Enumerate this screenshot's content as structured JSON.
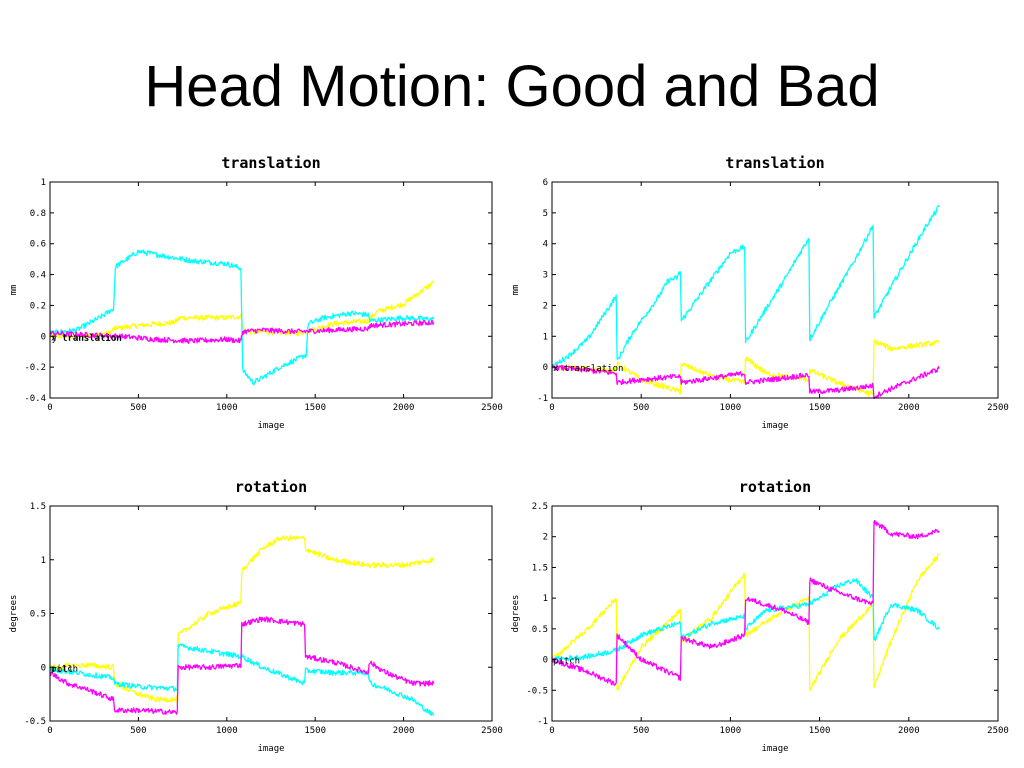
{
  "slide": {
    "title": "Head Motion: Good and Bad"
  },
  "colors": {
    "x": "#ffff00",
    "y": "#00ffff",
    "z": "#ff00ff",
    "axes": "#000000",
    "background": "#ffffff"
  },
  "chart_data": [
    {
      "type": "line",
      "title": "translation",
      "xlabel": "image",
      "ylabel": "mm",
      "xlim": [
        0,
        2500
      ],
      "ylim": [
        -0.4,
        1
      ],
      "xticks": [
        "0",
        "500",
        "1000",
        "1500",
        "2000",
        "2500"
      ],
      "yticks": [
        "-0.4",
        "-0.2",
        "0",
        "0.2",
        "0.4",
        "0.6",
        "0.8",
        "1"
      ],
      "grid": false,
      "legend_text": [
        "x translation",
        "y translation"
      ],
      "series": [
        {
          "color": "yellow",
          "x": [
            0,
            150,
            340,
            360,
            500,
            700,
            740,
            1000,
            1080,
            1100,
            1200,
            1400,
            1450,
            1600,
            1800,
            1850,
            2000,
            2170
          ],
          "y": [
            0.0,
            0.0,
            0.02,
            0.05,
            0.07,
            0.09,
            0.12,
            0.12,
            0.13,
            0.03,
            0.03,
            0.02,
            0.03,
            0.08,
            0.1,
            0.16,
            0.21,
            0.35
          ]
        },
        {
          "color": "cyan",
          "x": [
            0,
            150,
            280,
            360,
            370,
            500,
            800,
            1000,
            1080,
            1090,
            1150,
            1200,
            1300,
            1450,
            1460,
            1550,
            1700,
            1800,
            1810,
            2000,
            2170
          ],
          "y": [
            0.02,
            0.04,
            0.12,
            0.18,
            0.45,
            0.55,
            0.49,
            0.47,
            0.44,
            -0.22,
            -0.3,
            -0.27,
            -0.2,
            -0.12,
            0.08,
            0.12,
            0.15,
            0.14,
            0.1,
            0.12,
            0.11
          ]
        },
        {
          "color": "magenta",
          "x": [
            0,
            200,
            400,
            600,
            800,
            1000,
            1080,
            1090,
            1200,
            1400,
            1800,
            1810,
            2000,
            2170
          ],
          "y": [
            0.02,
            0.01,
            0.0,
            -0.02,
            -0.03,
            -0.02,
            -0.03,
            0.03,
            0.04,
            0.03,
            0.05,
            0.07,
            0.08,
            0.09
          ]
        }
      ]
    },
    {
      "type": "line",
      "title": "translation",
      "xlabel": "image",
      "ylabel": "mm",
      "xlim": [
        0,
        2500
      ],
      "ylim": [
        -1,
        6
      ],
      "xticks": [
        "0",
        "500",
        "1000",
        "1500",
        "2000",
        "2500"
      ],
      "yticks": [
        "-1",
        "0",
        "1",
        "2",
        "3",
        "4",
        "5",
        "6"
      ],
      "grid": false,
      "legend_text": [
        "x translation"
      ],
      "series": [
        {
          "color": "cyan",
          "x": [
            0,
            100,
            200,
            360,
            365,
            450,
            600,
            650,
            700,
            720,
            725,
            800,
            1000,
            1080,
            1085,
            1200,
            1300,
            1440,
            1445,
            1550,
            1700,
            1800,
            1805,
            1900,
            2100,
            2170
          ],
          "y": [
            0.0,
            0.4,
            0.9,
            2.3,
            0.2,
            1.1,
            2.3,
            2.8,
            2.9,
            3.1,
            1.5,
            2.1,
            3.7,
            3.9,
            0.8,
            1.9,
            2.8,
            4.2,
            0.9,
            2.0,
            3.5,
            4.6,
            1.6,
            2.6,
            4.6,
            5.2
          ]
        },
        {
          "color": "yellow",
          "x": [
            0,
            200,
            360,
            365,
            500,
            720,
            725,
            900,
            1080,
            1085,
            1200,
            1300,
            1440,
            1445,
            1600,
            1800,
            1805,
            1900,
            2170
          ],
          "y": [
            0.0,
            -0.05,
            -0.1,
            0.1,
            -0.4,
            -0.8,
            0.1,
            -0.3,
            -0.5,
            0.3,
            -0.2,
            -0.3,
            -0.4,
            -0.1,
            -0.5,
            -0.9,
            0.85,
            0.6,
            0.8
          ]
        },
        {
          "color": "magenta",
          "x": [
            0,
            200,
            360,
            365,
            500,
            720,
            725,
            900,
            1080,
            1085,
            1300,
            1440,
            1445,
            1600,
            1800,
            1805,
            1900,
            2170
          ],
          "y": [
            0.0,
            -0.1,
            -0.2,
            -0.5,
            -0.4,
            -0.3,
            -0.5,
            -0.35,
            -0.2,
            -0.5,
            -0.35,
            -0.25,
            -0.8,
            -0.75,
            -0.6,
            -0.95,
            -0.7,
            -0.05
          ]
        }
      ]
    },
    {
      "type": "line",
      "title": "rotation",
      "xlabel": "image",
      "ylabel": "degrees",
      "xlim": [
        0,
        2500
      ],
      "ylim": [
        -0.5,
        1.5
      ],
      "xticks": [
        "0",
        "500",
        "1000",
        "1500",
        "2000",
        "2500"
      ],
      "yticks": [
        "-0.5",
        "0",
        "0.5",
        "1",
        "1.5"
      ],
      "grid": false,
      "legend_text": [
        "pitch",
        "roll"
      ],
      "series": [
        {
          "color": "yellow",
          "x": [
            0,
            200,
            360,
            365,
            500,
            600,
            720,
            725,
            900,
            1080,
            1085,
            1200,
            1300,
            1440,
            1445,
            1600,
            1800,
            2000,
            2170
          ],
          "y": [
            0.0,
            0.02,
            0.0,
            -0.15,
            -0.25,
            -0.3,
            -0.3,
            0.3,
            0.5,
            0.6,
            0.9,
            1.1,
            1.2,
            1.2,
            1.1,
            1.0,
            0.95,
            0.95,
            1.0
          ]
        },
        {
          "color": "cyan",
          "x": [
            0,
            150,
            360,
            365,
            500,
            720,
            725,
            900,
            1080,
            1085,
            1200,
            1440,
            1445,
            1600,
            1800,
            1810,
            1900,
            2050,
            2170
          ],
          "y": [
            -0.02,
            -0.05,
            -0.1,
            -0.15,
            -0.18,
            -0.2,
            0.2,
            0.15,
            0.1,
            0.1,
            0.0,
            -0.15,
            -0.03,
            -0.05,
            -0.05,
            -0.15,
            -0.2,
            -0.3,
            -0.45
          ]
        },
        {
          "color": "magenta",
          "x": [
            0,
            100,
            200,
            360,
            365,
            500,
            720,
            725,
            900,
            1080,
            1085,
            1200,
            1440,
            1445,
            1600,
            1800,
            1805,
            1900,
            2050,
            2170
          ],
          "y": [
            -0.05,
            -0.15,
            -0.2,
            -0.3,
            -0.4,
            -0.4,
            -0.42,
            0.0,
            0.0,
            0.02,
            0.4,
            0.45,
            0.4,
            0.1,
            0.05,
            -0.05,
            0.05,
            -0.05,
            -0.15,
            -0.15
          ]
        }
      ]
    },
    {
      "type": "line",
      "title": "rotation",
      "xlabel": "image",
      "ylabel": "degrees",
      "xlim": [
        0,
        2500
      ],
      "ylim": [
        -1,
        2.5
      ],
      "xticks": [
        "0",
        "500",
        "1000",
        "1500",
        "2000",
        "2500"
      ],
      "yticks": [
        "-1",
        "-0.5",
        "0",
        "0.5",
        "1",
        "1.5",
        "2",
        "2.5"
      ],
      "grid": false,
      "legend_text": [
        "pitch"
      ],
      "series": [
        {
          "color": "yellow",
          "x": [
            0,
            200,
            360,
            365,
            500,
            720,
            725,
            900,
            1080,
            1085,
            1300,
            1440,
            1445,
            1600,
            1800,
            1805,
            1900,
            2050,
            2170
          ],
          "y": [
            0.0,
            0.5,
            1.0,
            -0.5,
            0.2,
            0.8,
            0.3,
            0.7,
            1.4,
            0.4,
            0.8,
            1.0,
            -0.5,
            0.3,
            0.9,
            -0.45,
            0.3,
            1.3,
            1.7
          ]
        },
        {
          "color": "cyan",
          "x": [
            0,
            200,
            360,
            500,
            720,
            725,
            900,
            1080,
            1085,
            1200,
            1440,
            1500,
            1600,
            1700,
            1800,
            1805,
            1900,
            2050,
            2170
          ],
          "y": [
            0.0,
            0.05,
            0.15,
            0.4,
            0.6,
            0.35,
            0.6,
            0.7,
            0.5,
            0.8,
            0.9,
            1.0,
            1.2,
            1.3,
            1.0,
            0.3,
            0.9,
            0.8,
            0.5
          ]
        },
        {
          "color": "magenta",
          "x": [
            0,
            100,
            200,
            360,
            365,
            500,
            720,
            725,
            900,
            1080,
            1085,
            1300,
            1440,
            1445,
            1600,
            1800,
            1805,
            1900,
            2050,
            2170
          ],
          "y": [
            0.0,
            -0.1,
            -0.2,
            -0.4,
            0.4,
            0.0,
            -0.3,
            0.35,
            0.2,
            0.4,
            1.0,
            0.8,
            0.6,
            1.3,
            1.1,
            0.9,
            2.25,
            2.05,
            2.0,
            2.1
          ]
        }
      ]
    }
  ]
}
